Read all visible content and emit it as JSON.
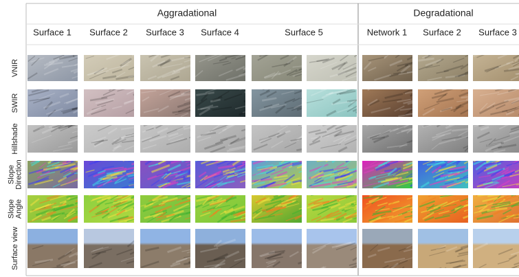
{
  "header": {
    "groups": [
      {
        "label": "Aggradational"
      },
      {
        "label": "Degradational"
      }
    ]
  },
  "columns": [
    "Surface 1",
    "Surface 2",
    "Surface 3",
    "Surface 4",
    "Surface 5",
    "Network 1",
    "Surface 2",
    "Surface 3"
  ],
  "rows": [
    [
      "VNIR"
    ],
    [
      "SWIR"
    ],
    [
      "Hillshade"
    ],
    [
      "Slope",
      "Direction"
    ],
    [
      "Slope",
      "Angle"
    ],
    [
      "Surface view"
    ]
  ]
}
